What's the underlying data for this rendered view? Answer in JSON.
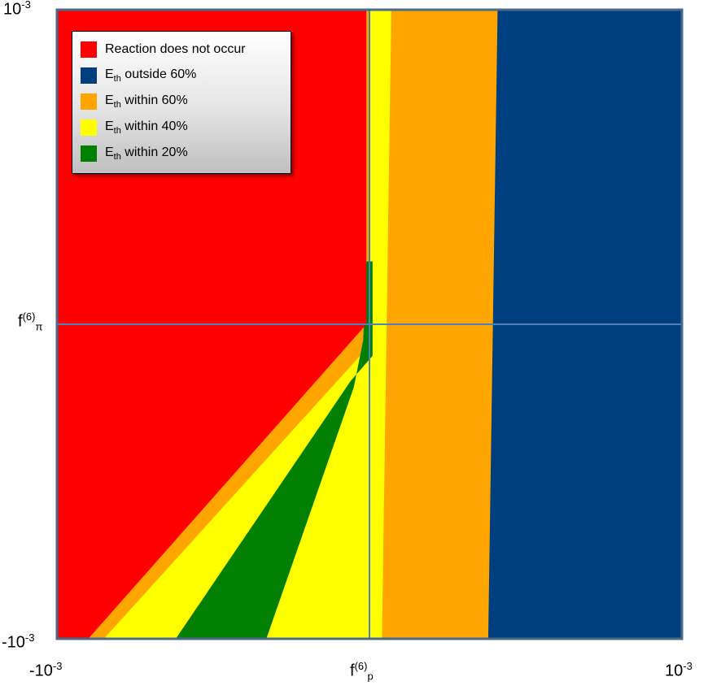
{
  "chart_data": {
    "type": "heatmap",
    "xlabel": {
      "base": "f",
      "sup": "(6)",
      "sub": "p"
    },
    "ylabel": {
      "base": "f",
      "sup": "(6)",
      "sub": "π"
    },
    "xlim": [
      -0.001,
      0.001
    ],
    "ylim": [
      -0.001,
      0.001
    ],
    "x_ticks": [
      {
        "value": -0.001,
        "base": "-10",
        "exp": "-3"
      },
      {
        "value": 0.001,
        "base": "10",
        "exp": "-3"
      }
    ],
    "y_ticks": [
      {
        "value": -0.001,
        "base": "-10",
        "exp": "-3"
      },
      {
        "value": 0.001,
        "base": "10",
        "exp": "-3"
      }
    ],
    "legend_position": "top-left",
    "categories": [
      {
        "key": "no_reaction",
        "label": "Reaction does not occur",
        "color": "#ff0000"
      },
      {
        "key": "outside60",
        "label_main": "E",
        "label_sub": "th",
        "label_rest": " outside 60%",
        "color": "#003f7f"
      },
      {
        "key": "within60",
        "label_main": "E",
        "label_sub": "th",
        "label_rest": " within 60%",
        "color": "#ffa500"
      },
      {
        "key": "within40",
        "label_main": "E",
        "label_sub": "th",
        "label_rest": " within 40%",
        "color": "#ffff00"
      },
      {
        "key": "within20",
        "label_main": "E",
        "label_sub": "th",
        "label_rest": " within 20%",
        "color": "#007f00"
      }
    ],
    "regions": [
      {
        "category": "outside60",
        "polygon": [
          [
            0.00038,
            0.001
          ],
          [
            0.001,
            0.001
          ],
          [
            0.001,
            -0.001
          ],
          [
            0.00038,
            -0.001
          ]
        ]
      },
      {
        "category": "within60",
        "polygon": [
          [
            -0.001,
            -0.001
          ],
          [
            0.00038,
            -0.001
          ],
          [
            0.00041,
            0.001
          ],
          [
            0.0,
            0.001
          ],
          [
            0.0,
            0.0
          ],
          [
            -2e-05,
            -5e-05
          ],
          [
            -0.0009,
            -0.001
          ]
        ]
      },
      {
        "category": "within40",
        "polygon": [
          [
            -0.00095,
            -0.001
          ],
          [
            4e-05,
            -0.001
          ],
          [
            7e-05,
            0.001
          ],
          [
            0.0,
            0.001
          ],
          [
            0.0,
            0.0
          ],
          [
            -3e-05,
            -0.0001
          ],
          [
            -0.00085,
            -0.001
          ]
        ]
      },
      {
        "category": "within20",
        "polygon": [
          [
            -0.00062,
            -0.001
          ],
          [
            -0.00033,
            -0.001
          ],
          [
            -5e-05,
            -0.0002
          ],
          [
            -2e-05,
            -5e-05
          ],
          [
            -1e-05,
            0.0002
          ],
          [
            1e-05,
            0.0002
          ],
          [
            1e-05,
            -0.0001
          ],
          [
            -6e-05,
            -0.00018
          ]
        ]
      },
      {
        "category": "no_reaction",
        "polygon": [
          [
            -0.001,
            0.001
          ],
          [
            -1e-05,
            0.001
          ],
          [
            -1e-05,
            0.0
          ],
          [
            -0.0009,
            -0.001
          ],
          [
            -0.001,
            -0.001
          ]
        ]
      }
    ]
  }
}
